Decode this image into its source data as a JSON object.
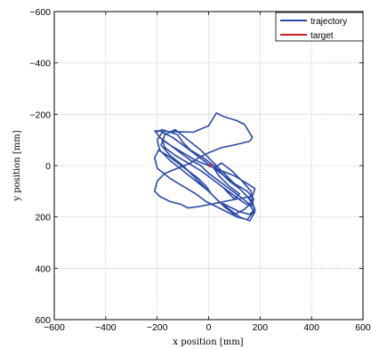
{
  "chart_data": {
    "type": "line",
    "xlabel": "x position [mm]",
    "ylabel": "y position [mm]",
    "xlim": [
      -600,
      600
    ],
    "ylim": [
      -600,
      600
    ],
    "y_inverted": true,
    "xticks": [
      -600,
      -400,
      -200,
      0,
      200,
      400,
      600
    ],
    "yticks": [
      -600,
      -400,
      -200,
      0,
      200,
      400,
      600
    ],
    "grid": true,
    "legend_position": "top-right",
    "colors": {
      "trajectory": "#2b4aa6",
      "target": "#cc1f1f"
    },
    "series": [
      {
        "name": "trajectory",
        "x": [
          -210,
          -60,
          0,
          30,
          60,
          110,
          140,
          170,
          160,
          100,
          50,
          0,
          -40,
          -70,
          -120,
          -170,
          -200,
          -210,
          -190,
          -150,
          -110,
          -80,
          -40,
          10,
          60,
          110,
          170,
          180,
          150,
          100,
          50,
          0,
          -50,
          -100,
          -150,
          -190,
          -205,
          -180,
          -120,
          -100,
          -70,
          -20,
          20,
          50,
          80,
          120,
          150,
          170,
          180,
          160,
          120,
          80,
          40,
          10,
          -10,
          -40,
          -80,
          -120,
          -160,
          -195,
          -210,
          -200,
          -150,
          -100,
          -50,
          -10,
          30,
          70,
          110,
          150,
          175,
          160,
          120,
          80,
          40,
          0,
          -30,
          -70,
          -110,
          -150,
          -180,
          -170,
          -130,
          -80,
          -30,
          10,
          50,
          90,
          130,
          165,
          175,
          150,
          100,
          60,
          20,
          -20,
          -60,
          -100,
          -140,
          -180,
          -200,
          -190,
          -150,
          -100,
          -50,
          0,
          40,
          80,
          120,
          160,
          180,
          170,
          130,
          90,
          50,
          10,
          -30,
          -80,
          -130,
          -170,
          -185,
          -150,
          -100,
          -60,
          -20,
          20,
          60,
          100,
          140,
          170,
          165,
          130,
          90,
          50,
          20,
          40,
          80,
          120,
          100,
          60
        ],
        "y": [
          -135,
          -130,
          -155,
          -205,
          -190,
          -175,
          -160,
          -110,
          -95,
          -80,
          -70,
          -50,
          -30,
          -10,
          10,
          30,
          60,
          100,
          120,
          140,
          150,
          165,
          160,
          150,
          140,
          130,
          120,
          90,
          70,
          40,
          20,
          0,
          -20,
          -50,
          -80,
          -110,
          -130,
          -140,
          -120,
          -90,
          -60,
          -30,
          0,
          30,
          60,
          90,
          120,
          150,
          170,
          190,
          180,
          160,
          140,
          110,
          80,
          50,
          20,
          -10,
          -40,
          -60,
          -30,
          10,
          50,
          80,
          110,
          140,
          160,
          180,
          200,
          210,
          180,
          150,
          120,
          90,
          60,
          30,
          0,
          -20,
          -50,
          -80,
          -100,
          -70,
          -40,
          -10,
          20,
          50,
          80,
          110,
          140,
          160,
          130,
          100,
          70,
          40,
          10,
          -20,
          -50,
          -80,
          -110,
          -130,
          -100,
          -60,
          -20,
          20,
          60,
          100,
          140,
          170,
          200,
          215,
          180,
          140,
          100,
          60,
          20,
          -20,
          -60,
          -100,
          -140,
          -120,
          -80,
          -40,
          0,
          40,
          80,
          120,
          160,
          190,
          170,
          140,
          100,
          60,
          20,
          -10,
          10,
          40,
          80,
          110,
          130,
          90
        ]
      },
      {
        "name": "target",
        "x": [
          0,
          10,
          5
        ],
        "y": [
          0,
          -5,
          5
        ]
      }
    ]
  }
}
